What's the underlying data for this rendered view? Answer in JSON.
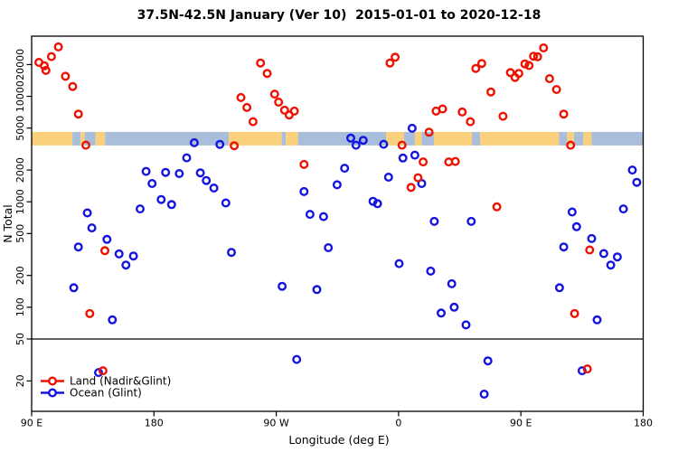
{
  "title": "37.5N-42.5N January (Ver 10)  2015-01-01 to 2020-12-18",
  "chart_data": {
    "type": "scatter",
    "title": "37.5N-42.5N January (Ver 10)  2015-01-01 to 2020-12-18",
    "xlabel": "Longitude (deg E)",
    "ylabel": "N Total",
    "grid": false,
    "legend_position": "bottom-left-inside",
    "x_axis": {
      "min": 90,
      "max": 540,
      "description": "Longitude axis wraps eastward: 90E to 180, 90W, 0, 90E, 180; values above 180 are longitude+360",
      "ticks": [
        {
          "lon": 90,
          "label": "90 E"
        },
        {
          "lon": 180,
          "label": "180"
        },
        {
          "lon": 270,
          "label": "90 W"
        },
        {
          "lon": 360,
          "label": "0"
        },
        {
          "lon": 450,
          "label": "90 E"
        },
        {
          "lon": 540,
          "label": "180"
        }
      ]
    },
    "y_axis": {
      "scale": "log10",
      "min": 10.3,
      "max": 37200,
      "ticks": [
        20,
        50,
        100,
        200,
        500,
        1000,
        2000,
        5000,
        10000,
        20000
      ]
    },
    "reference_line_n": 50,
    "coastline_band": {
      "y_range_n": [
        3420,
        4600
      ],
      "land_color": "#fbd07c",
      "ocean_color": "#a8bedb",
      "segments": [
        {
          "from": 90,
          "to": 120,
          "surface": "land"
        },
        {
          "from": 120,
          "to": 126,
          "surface": "ocean"
        },
        {
          "from": 126,
          "to": 129,
          "surface": "land"
        },
        {
          "from": 129,
          "to": 137,
          "surface": "ocean"
        },
        {
          "from": 137,
          "to": 144,
          "surface": "land"
        },
        {
          "from": 144,
          "to": 235,
          "surface": "ocean"
        },
        {
          "from": 235,
          "to": 274,
          "surface": "land"
        },
        {
          "from": 274,
          "to": 277,
          "surface": "ocean"
        },
        {
          "from": 277,
          "to": 286,
          "surface": "land"
        },
        {
          "from": 286,
          "to": 351,
          "surface": "ocean"
        },
        {
          "from": 351,
          "to": 364,
          "surface": "land"
        },
        {
          "from": 364,
          "to": 372,
          "surface": "ocean"
        },
        {
          "from": 372,
          "to": 377,
          "surface": "land"
        },
        {
          "from": 377,
          "to": 386,
          "surface": "ocean"
        },
        {
          "from": 386,
          "to": 414,
          "surface": "land"
        },
        {
          "from": 414,
          "to": 420,
          "surface": "ocean"
        },
        {
          "from": 420,
          "to": 478,
          "surface": "land"
        },
        {
          "from": 478,
          "to": 484,
          "surface": "ocean"
        },
        {
          "from": 484,
          "to": 489,
          "surface": "land"
        },
        {
          "from": 489,
          "to": 496,
          "surface": "ocean"
        },
        {
          "from": 496,
          "to": 502,
          "surface": "land"
        },
        {
          "from": 502,
          "to": 540,
          "surface": "ocean"
        }
      ]
    },
    "point_format": [
      "lon_axis_deg_e",
      "n_total"
    ],
    "series": [
      {
        "name": "Land (Nadir&Glint)",
        "color": "#ee1100",
        "points": [
          [
            95.3,
            21000
          ],
          [
            99.3,
            19500
          ],
          [
            100.5,
            17600
          ],
          [
            104.6,
            23800
          ],
          [
            109.7,
            29400
          ],
          [
            114.9,
            15500
          ],
          [
            120.2,
            12400
          ],
          [
            124.4,
            6780
          ],
          [
            129.9,
            3440
          ],
          [
            132.8,
            87
          ],
          [
            142.5,
            25
          ],
          [
            143.9,
            344
          ],
          [
            239.1,
            3400
          ],
          [
            244.0,
            9730
          ],
          [
            248.4,
            7830
          ],
          [
            252.9,
            5750
          ],
          [
            258.4,
            20700
          ],
          [
            263.3,
            16500
          ],
          [
            268.8,
            10500
          ],
          [
            271.7,
            8810
          ],
          [
            276.1,
            7380
          ],
          [
            279.5,
            6650
          ],
          [
            283.3,
            7240
          ],
          [
            290.4,
            2260
          ],
          [
            353.7,
            20700
          ],
          [
            357.5,
            23500
          ],
          [
            362.5,
            3440
          ],
          [
            369.2,
            1370
          ],
          [
            374.3,
            1690
          ],
          [
            378.1,
            2390
          ],
          [
            382.4,
            4570
          ],
          [
            387.6,
            7240
          ],
          [
            392.4,
            7600
          ],
          [
            396.9,
            2390
          ],
          [
            401.8,
            2410
          ],
          [
            406.8,
            7100
          ],
          [
            412.8,
            5750
          ],
          [
            416.8,
            18400
          ],
          [
            421.2,
            20500
          ],
          [
            427.9,
            11000
          ],
          [
            432.3,
            895
          ],
          [
            436.8,
            6470
          ],
          [
            442.3,
            16800
          ],
          [
            445.7,
            15100
          ],
          [
            448.5,
            16500
          ],
          [
            452.9,
            20300
          ],
          [
            456.0,
            19600
          ],
          [
            459.3,
            24000
          ],
          [
            462.3,
            23700
          ],
          [
            466.7,
            28800
          ],
          [
            471.1,
            14700
          ],
          [
            476.2,
            11600
          ],
          [
            481.5,
            6780
          ],
          [
            486.6,
            3440
          ],
          [
            489.5,
            87
          ],
          [
            498.9,
            26
          ],
          [
            500.6,
            349
          ]
        ]
      },
      {
        "name": "Ocean (Glint)",
        "color": "#1414e0",
        "points": [
          [
            121.0,
            153
          ],
          [
            124.4,
            373
          ],
          [
            131.0,
            785
          ],
          [
            134.3,
            565
          ],
          [
            139.2,
            24
          ],
          [
            145.4,
            440
          ],
          [
            149.4,
            76
          ],
          [
            154.3,
            320
          ],
          [
            159.4,
            251
          ],
          [
            164.9,
            306
          ],
          [
            169.8,
            855
          ],
          [
            174.2,
            1940
          ],
          [
            178.6,
            1490
          ],
          [
            185.3,
            1050
          ],
          [
            188.6,
            1900
          ],
          [
            193.0,
            940
          ],
          [
            198.6,
            1850
          ],
          [
            204.1,
            2610
          ],
          [
            209.7,
            3630
          ],
          [
            214.1,
            1880
          ],
          [
            218.5,
            1590
          ],
          [
            224.1,
            1350
          ],
          [
            228.5,
            3500
          ],
          [
            232.9,
            975
          ],
          [
            237.0,
            331
          ],
          [
            274.3,
            158
          ],
          [
            285.0,
            32
          ],
          [
            290.4,
            1250
          ],
          [
            294.8,
            760
          ],
          [
            299.9,
            147
          ],
          [
            304.8,
            724
          ],
          [
            308.3,
            367
          ],
          [
            314.8,
            1450
          ],
          [
            320.3,
            2080
          ],
          [
            324.8,
            4010
          ],
          [
            328.7,
            3440
          ],
          [
            334.0,
            3830
          ],
          [
            341.2,
            1010
          ],
          [
            344.5,
            960
          ],
          [
            349.0,
            3510
          ],
          [
            352.6,
            1710
          ],
          [
            360.4,
            259
          ],
          [
            363.2,
            2600
          ],
          [
            370.0,
            4980
          ],
          [
            372.0,
            2770
          ],
          [
            377.0,
            1490
          ],
          [
            383.6,
            220
          ],
          [
            386.3,
            652
          ],
          [
            391.3,
            88
          ],
          [
            399.1,
            167
          ],
          [
            400.9,
            100
          ],
          [
            409.6,
            68
          ],
          [
            413.5,
            652
          ],
          [
            423.0,
            15
          ],
          [
            425.7,
            31
          ],
          [
            478.4,
            153
          ],
          [
            481.5,
            373
          ],
          [
            487.7,
            800
          ],
          [
            491.0,
            580
          ],
          [
            495.0,
            25
          ],
          [
            502.1,
            448
          ],
          [
            506.1,
            76
          ],
          [
            511.0,
            323
          ],
          [
            516.1,
            251
          ],
          [
            521.0,
            300
          ],
          [
            525.4,
            855
          ],
          [
            532.0,
            2000
          ],
          [
            535.3,
            1530
          ]
        ]
      }
    ]
  }
}
